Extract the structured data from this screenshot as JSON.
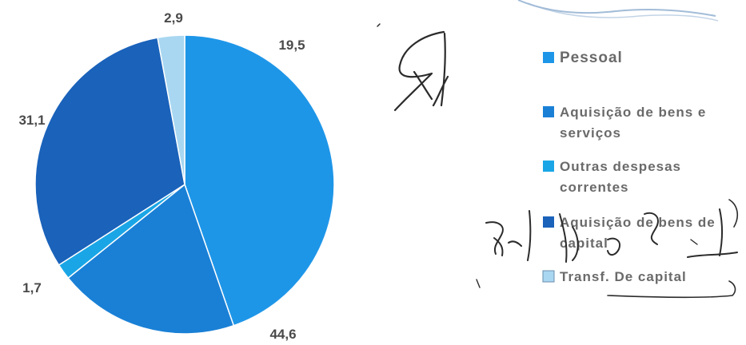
{
  "chart_data": {
    "type": "pie",
    "title": "",
    "labels": [
      "Pessoal",
      "Aquisição de bens e serviços",
      "Outras despesas correntes",
      "Aquisição de bens de capital",
      "Transf. De capital"
    ],
    "values": [
      44.6,
      19.5,
      1.7,
      31.1,
      2.9
    ],
    "value_labels": [
      "44,6",
      "19,5",
      "1,7",
      "31,1",
      "2,9"
    ],
    "colors": [
      "#1e96e8",
      "#1a80d6",
      "#1aa6e6",
      "#1a62ba",
      "#a9d7f1"
    ],
    "legend": {
      "position": "right",
      "lines": [
        [
          "Pessoal"
        ],
        [
          "Aquisição de bens e",
          "serviços"
        ],
        [
          "Outras despesas",
          "correntes"
        ],
        [
          "Aquisição de bens de",
          "capital"
        ],
        [
          "Transf. De capital"
        ]
      ]
    }
  }
}
